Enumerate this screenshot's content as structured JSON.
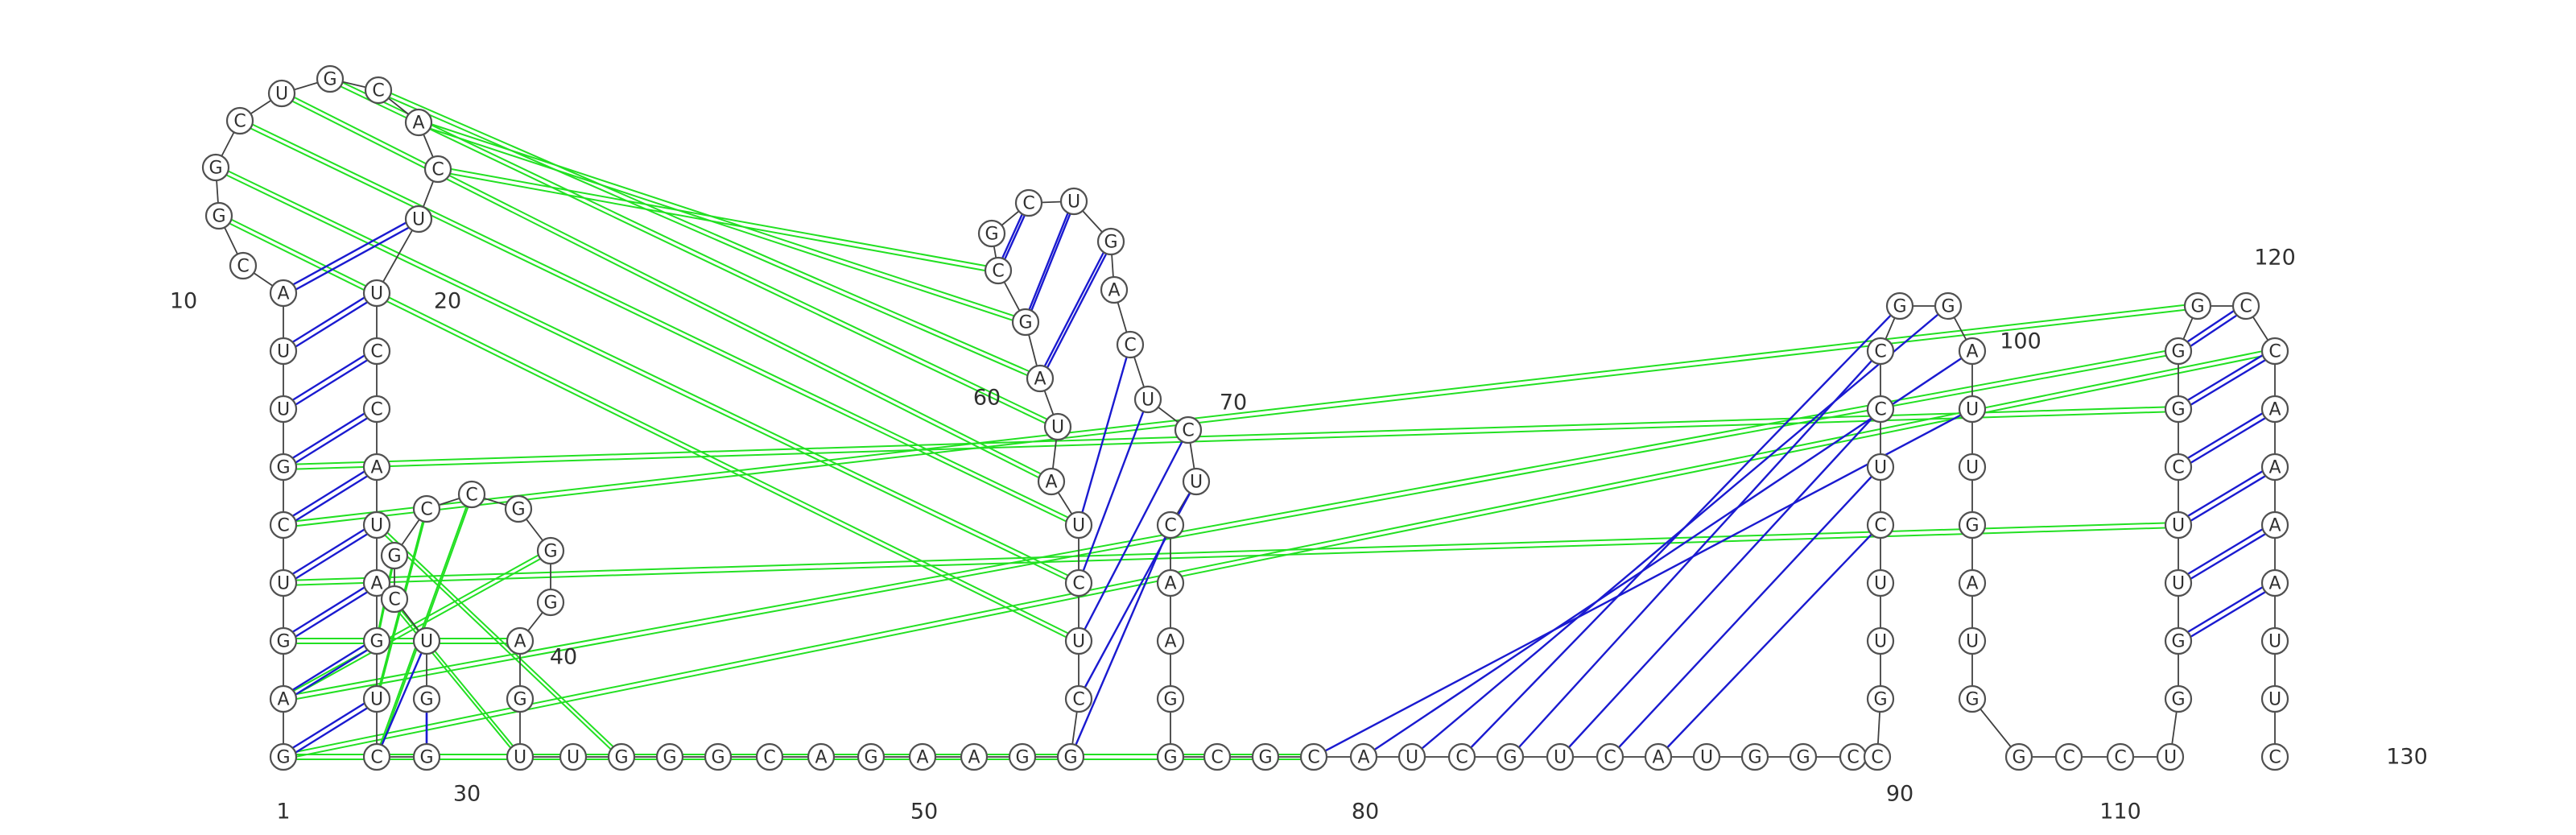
{
  "colors": {
    "background": "#ffffff",
    "nucleotide_stroke": "#505050",
    "backbone": "#404040",
    "canonical_pair": "#1a1ad0",
    "tertiary_pair": "#22e022"
  },
  "sequence": "GAGUCGUUACGGCUGCACUUCCAUAGUCGGUCGCCGGGAGUUGGGCAGAAGGCUCUAUAGCGCUGACUCUCAAGGCGCAUCGUCAUGGCCGUUCUCCGGAUUGAUGGCCUGGUUCGGGCCAAAAUUC",
  "position_labels": [
    "10",
    "20",
    "1",
    "30",
    "40",
    "50",
    "60",
    "70",
    "80",
    "90",
    "100",
    "110",
    "120",
    "130"
  ],
  "canonical_pairs": [
    [
      9,
      19
    ],
    [
      8,
      20
    ],
    [
      7,
      21
    ],
    [
      6,
      22
    ],
    [
      5,
      23
    ],
    [
      4,
      24
    ],
    [
      3,
      25
    ],
    [
      2,
      26
    ],
    [
      1,
      27
    ],
    [
      28,
      31
    ],
    [
      29,
      30
    ],
    [
      30,
      29
    ],
    [
      56,
      67
    ],
    [
      55,
      68
    ],
    [
      54,
      69
    ],
    [
      53,
      70
    ],
    [
      52,
      71
    ],
    [
      60,
      64
    ],
    [
      61,
      63
    ],
    [
      59,
      65
    ],
    [
      85,
      94
    ],
    [
      84,
      95
    ],
    [
      83,
      96
    ],
    [
      82,
      97
    ],
    [
      81,
      98
    ],
    [
      80,
      99
    ],
    [
      79,
      100
    ],
    [
      78,
      101
    ],
    [
      112,
      124
    ],
    [
      113,
      123
    ],
    [
      114,
      122
    ],
    [
      115,
      121
    ],
    [
      116,
      120
    ],
    [
      117,
      119
    ],
    [
      118,
      118
    ]
  ],
  "wobble_pairs": [
    [
      3,
      25
    ]
  ],
  "tertiary_interactions": [
    [
      13,
      56
    ],
    [
      14,
      57
    ],
    [
      12,
      55
    ],
    [
      15,
      58
    ],
    [
      16,
      59
    ],
    [
      17,
      60
    ],
    [
      18,
      61
    ],
    [
      11,
      54
    ],
    [
      1,
      120
    ],
    [
      2,
      117
    ],
    [
      6,
      116
    ],
    [
      5,
      118
    ],
    [
      4,
      114
    ],
    [
      3,
      39
    ],
    [
      26,
      33
    ],
    [
      27,
      34
    ],
    [
      28,
      35
    ],
    [
      2,
      37
    ],
    [
      25,
      41
    ],
    [
      24,
      43
    ],
    [
      1,
      78
    ]
  ],
  "legend": {}
}
